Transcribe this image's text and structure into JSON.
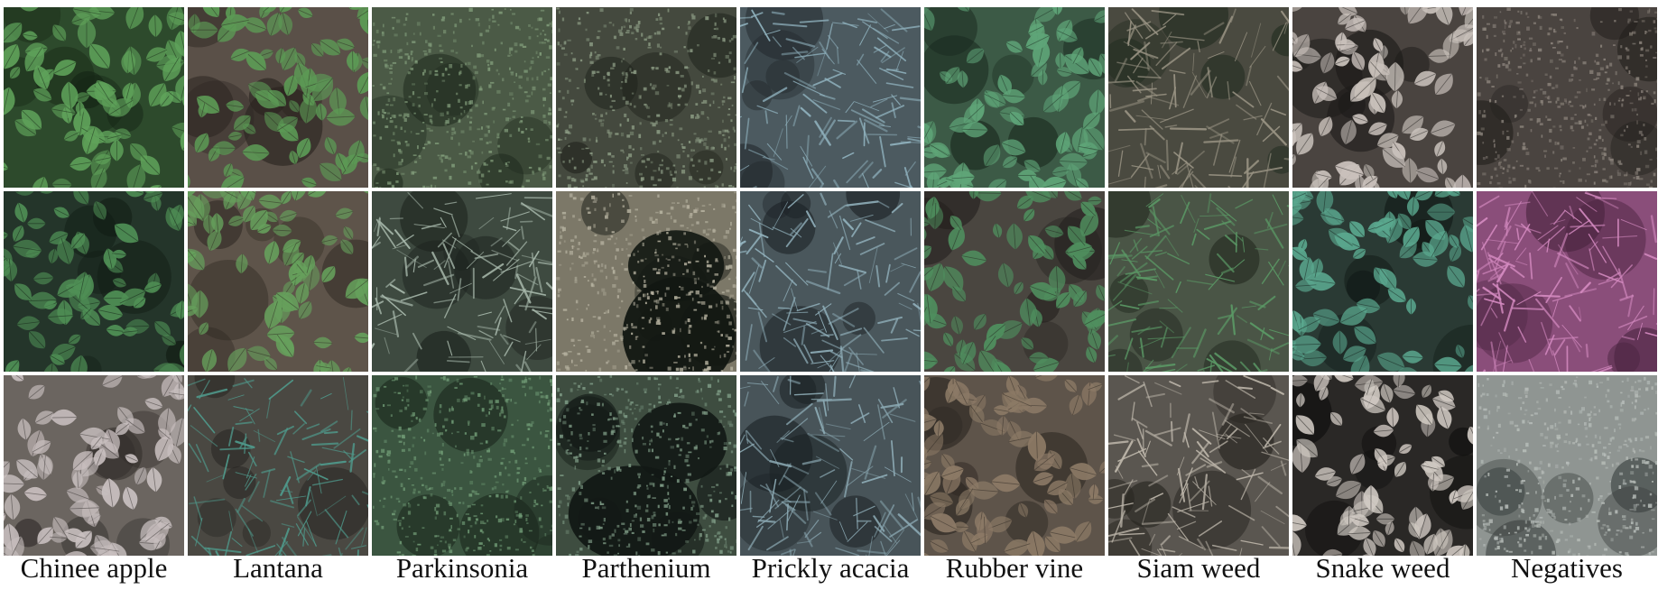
{
  "figure": {
    "columns": [
      {
        "label": "Chinee apple",
        "tiles": [
          {
            "bg": "#2d4a2c",
            "leaf": "#5fa25a",
            "shadow": "#152414",
            "style": "leaf"
          },
          {
            "bg": "#24352a",
            "leaf": "#4f8f55",
            "shadow": "#101a12",
            "style": "leaf"
          },
          {
            "bg": "#6b6560",
            "leaf": "#c8bfbf",
            "shadow": "#2e2a28",
            "style": "leaf"
          }
        ]
      },
      {
        "label": "Lantana",
        "tiles": [
          {
            "bg": "#5a5048",
            "leaf": "#5c9a55",
            "shadow": "#2a2420",
            "style": "leaf"
          },
          {
            "bg": "#5e544a",
            "leaf": "#66a05c",
            "shadow": "#2c2620",
            "style": "leaf"
          },
          {
            "bg": "#4a4842",
            "leaf": "#4f9a8c",
            "shadow": "#22211e",
            "style": "twig"
          }
        ]
      },
      {
        "label": "Parkinsonia",
        "tiles": [
          {
            "bg": "#4b5a46",
            "leaf": "#7f9a78",
            "shadow": "#1f2a1e",
            "style": "speck"
          },
          {
            "bg": "#3e4a40",
            "leaf": "#a7b8ab",
            "shadow": "#1c221d",
            "style": "twig"
          },
          {
            "bg": "#3b5540",
            "leaf": "#6f9a74",
            "shadow": "#1b281d",
            "style": "speck"
          }
        ]
      },
      {
        "label": "Parthenium",
        "tiles": [
          {
            "bg": "#44493e",
            "leaf": "#8a9a82",
            "shadow": "#1b1e18",
            "style": "speck"
          },
          {
            "bg": "#7c7868",
            "leaf": "#b6b2a0",
            "shadow": "#121712",
            "style": "blob"
          },
          {
            "bg": "#3e4d40",
            "leaf": "#7d9a84",
            "shadow": "#121815",
            "style": "blob"
          }
        ]
      },
      {
        "label": "Prickly acacia",
        "tiles": [
          {
            "bg": "#4c5a60",
            "leaf": "#8fb1bd",
            "shadow": "#1e2427",
            "style": "twig"
          },
          {
            "bg": "#4a575c",
            "leaf": "#93b3be",
            "shadow": "#1d2326",
            "style": "twig"
          },
          {
            "bg": "#485459",
            "leaf": "#8caab4",
            "shadow": "#1c2225",
            "style": "twig"
          }
        ]
      },
      {
        "label": "Rubber vine",
        "tiles": [
          {
            "bg": "#3c5a46",
            "leaf": "#5fa578",
            "shadow": "#1a2a1f",
            "style": "leaf"
          },
          {
            "bg": "#4a4640",
            "leaf": "#4f8e5e",
            "shadow": "#221f1c",
            "style": "leaf"
          },
          {
            "bg": "#5e544a",
            "leaf": "#8c7a66",
            "shadow": "#2a2520",
            "style": "leaf"
          }
        ]
      },
      {
        "label": "Siam weed",
        "tiles": [
          {
            "bg": "#4a4a40",
            "leaf": "#9a9484",
            "shadow": "#1f2a1e",
            "style": "twig"
          },
          {
            "bg": "#4a5546",
            "leaf": "#5b9a66",
            "shadow": "#21281f",
            "style": "twig"
          },
          {
            "bg": "#5a5650",
            "leaf": "#bdb6aa",
            "shadow": "#26241f",
            "style": "twig"
          }
        ]
      },
      {
        "label": "Snake weed",
        "tiles": [
          {
            "bg": "#4a4440",
            "leaf": "#c9c1bb",
            "shadow": "#1c1a18",
            "style": "leaf"
          },
          {
            "bg": "#2a3a34",
            "leaf": "#5aa78e",
            "shadow": "#121a17",
            "style": "leaf"
          },
          {
            "bg": "#2a2826",
            "leaf": "#d0c9c2",
            "shadow": "#0e0d0c",
            "style": "leaf"
          }
        ]
      },
      {
        "label": "Negatives",
        "tiles": [
          {
            "bg": "#4a4440",
            "leaf": "#8a827a",
            "shadow": "#221f1c",
            "style": "speck"
          },
          {
            "bg": "#8a4e7a",
            "leaf": "#d48ac0",
            "shadow": "#4a2540",
            "style": "twig"
          },
          {
            "bg": "#8f9592",
            "leaf": "#b6bcb8",
            "shadow": "#3c4240",
            "style": "speck"
          }
        ]
      }
    ]
  }
}
